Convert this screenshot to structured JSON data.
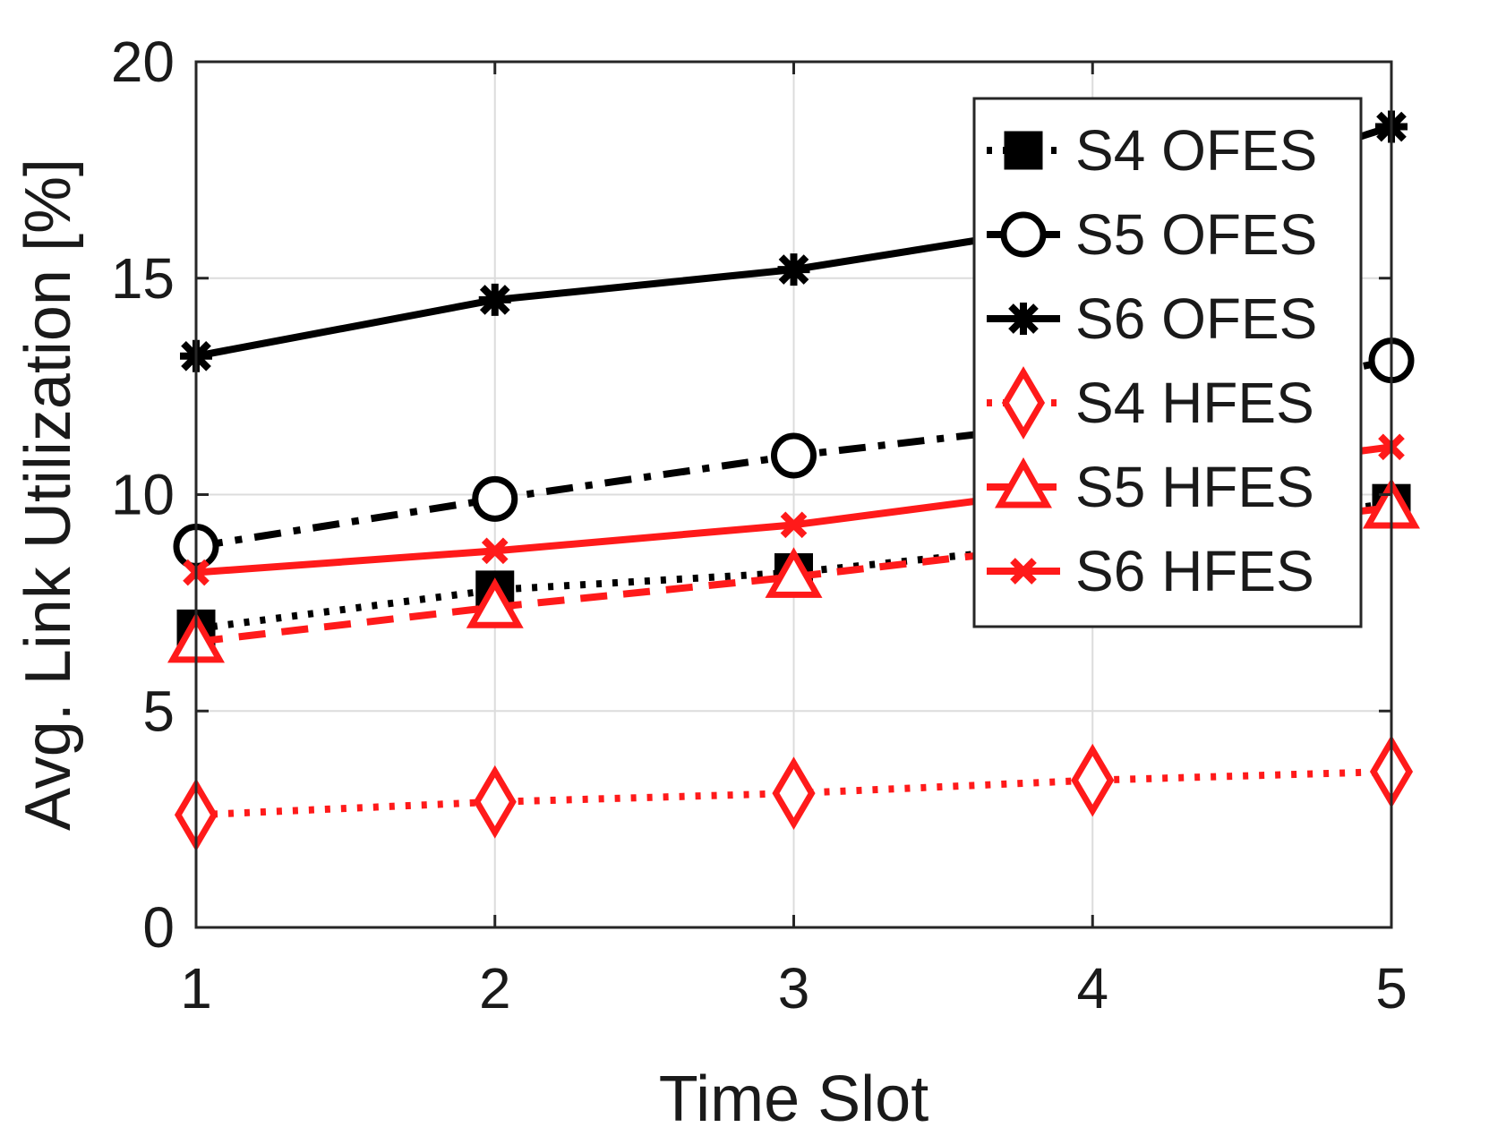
{
  "chart_data": {
    "type": "line",
    "xlabel": "Time Slot",
    "ylabel": "Avg. Link Utilization [%]",
    "x": [
      1,
      2,
      3,
      4,
      5
    ],
    "xlim": [
      1,
      5
    ],
    "ylim": [
      0,
      20
    ],
    "xticks": [
      "1",
      "2",
      "3",
      "4",
      "5"
    ],
    "yticks": [
      "0",
      "5",
      "10",
      "15",
      "20"
    ],
    "grid": true,
    "legend_position": "top-right",
    "series": [
      {
        "name": "S4 OFES",
        "values": [
          6.9,
          7.8,
          8.2,
          8.9,
          9.8
        ],
        "color": "#000000",
        "dash": "dotted",
        "marker": "square"
      },
      {
        "name": "S5 OFES",
        "values": [
          8.8,
          9.9,
          10.9,
          11.7,
          13.1
        ],
        "color": "#000000",
        "dash": "dashdot",
        "marker": "circle"
      },
      {
        "name": "S6 OFES",
        "values": [
          13.2,
          14.5,
          15.2,
          16.3,
          18.5
        ],
        "color": "#000000",
        "dash": "solid",
        "marker": "star"
      },
      {
        "name": "S4 HFES",
        "values": [
          2.6,
          2.9,
          3.1,
          3.4,
          3.6
        ],
        "color": "#ff1a1a",
        "dash": "dotted",
        "marker": "diamond"
      },
      {
        "name": "S5 HFES",
        "values": [
          6.6,
          7.4,
          8.1,
          8.9,
          9.7
        ],
        "color": "#ff1a1a",
        "dash": "dashed",
        "marker": "triangle"
      },
      {
        "name": "S6 HFES",
        "values": [
          8.2,
          8.7,
          9.3,
          10.2,
          11.1
        ],
        "color": "#ff1a1a",
        "dash": "solid",
        "marker": "x"
      }
    ]
  }
}
